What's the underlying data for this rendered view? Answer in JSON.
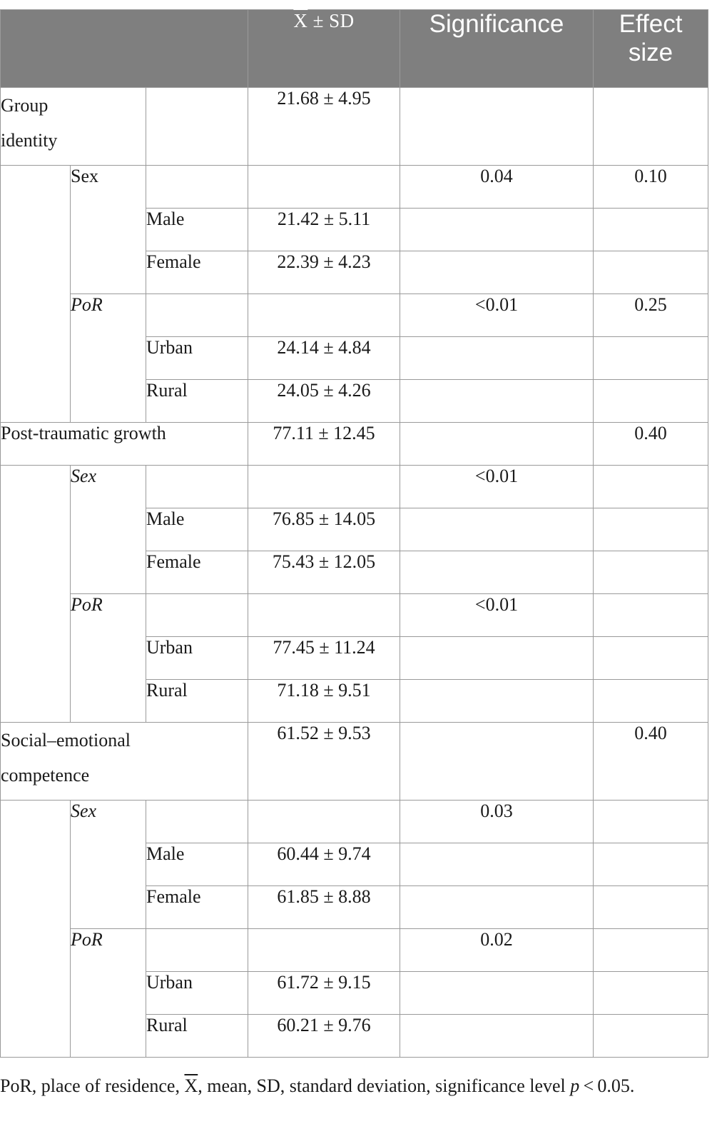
{
  "header": {
    "mean_sd": "X̅ ± SD",
    "significance": "Significance",
    "effect_size_line1": "Effect",
    "effect_size_line2": "size"
  },
  "sections": [
    {
      "label": "Group identity",
      "label_line1": "Group",
      "label_line2": "identity",
      "mean_sd": "21.68 ± 4.95",
      "effect": "",
      "factors": [
        {
          "name": "Sex",
          "significance": "0.04",
          "effect": "0.10",
          "levels": [
            {
              "name": "Male",
              "mean_sd": "21.42 ± 5.11"
            },
            {
              "name": "Female",
              "mean_sd": "22.39 ± 4.23"
            }
          ]
        },
        {
          "name": "PoR",
          "significance": "<0.01",
          "effect": "0.25",
          "levels": [
            {
              "name": "Urban",
              "mean_sd": "24.14 ± 4.84"
            },
            {
              "name": "Rural",
              "mean_sd": "24.05 ± 4.26"
            }
          ]
        }
      ]
    },
    {
      "label": "Post-traumatic growth",
      "mean_sd": "77.11 ± 12.45",
      "effect": "0.40",
      "factors": [
        {
          "name": "Sex",
          "significance": "<0.01",
          "effect": "",
          "levels": [
            {
              "name": "Male",
              "mean_sd": "76.85 ± 14.05"
            },
            {
              "name": "Female",
              "mean_sd": "75.43 ± 12.05"
            }
          ]
        },
        {
          "name": "PoR",
          "significance": "<0.01",
          "effect": "",
          "levels": [
            {
              "name": "Urban",
              "mean_sd": "77.45 ± 11.24"
            },
            {
              "name": "Rural",
              "mean_sd": "71.18 ± 9.51"
            }
          ]
        }
      ]
    },
    {
      "label": "Social–emotional competence",
      "label_line1": "Social–emotional",
      "label_line2": "competence",
      "mean_sd": "61.52 ± 9.53",
      "effect": "0.40",
      "factors": [
        {
          "name": "Sex",
          "significance": "0.03",
          "effect": "",
          "levels": [
            {
              "name": "Male",
              "mean_sd": "60.44 ± 9.74"
            },
            {
              "name": "Female",
              "mean_sd": "61.85 ± 8.88"
            }
          ]
        },
        {
          "name": "PoR",
          "significance": "0.02",
          "effect": "",
          "levels": [
            {
              "name": "Urban",
              "mean_sd": "61.72 ± 9.15"
            },
            {
              "name": "Rural",
              "mean_sd": "60.21 ± 9.76"
            }
          ]
        }
      ]
    }
  ],
  "footnote": {
    "part1": "PoR, place of residence, ",
    "xbar": "X",
    "part2": ", mean, SD, standard deviation, significance level ",
    "p": "p",
    "part3": " < 0.05."
  },
  "colors": {
    "header_bg": "#7f7f7f",
    "header_text": "#ffffff",
    "grid": "#9a9a9a"
  }
}
